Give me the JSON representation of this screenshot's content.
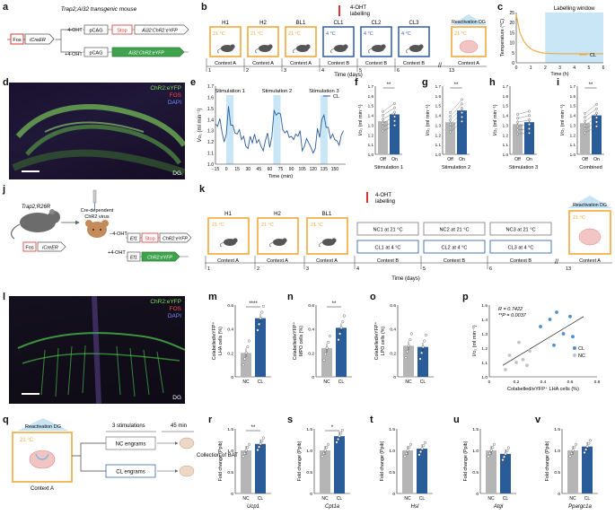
{
  "colors": {
    "orange": "#f2a83a",
    "blue": "#3a66b0",
    "light_blue": "#c8e6f5",
    "grey": "#b5b5b5",
    "dark_blue": "#2b5c9a"
  },
  "panel_labels": [
    "a",
    "b",
    "c",
    "d",
    "e",
    "f",
    "g",
    "h",
    "i",
    "j",
    "k",
    "l",
    "m",
    "n",
    "o",
    "p",
    "q",
    "r",
    "s",
    "t",
    "u",
    "v"
  ],
  "a": {
    "title": "Trap2;Ai32 transgenic mouse",
    "fos": "Fos",
    "icreer": "iCreER",
    "icreer_sup": "T2",
    "pcag": "pCAG",
    "stop": "Stop",
    "construct_top": "Ai32:ChR2:eYFP",
    "construct_bottom": "Ai32:ChR2:eYFP",
    "minus_oht": "−4-OHT",
    "plus_oht": "+4-OHT"
  },
  "b": {
    "oht": "4-OHT",
    "oht2": "labelling",
    "boxes": [
      {
        "name": "H1",
        "temp": "21 °C",
        "ctx": "Context A",
        "day": "1"
      },
      {
        "name": "H2",
        "temp": "21 °C",
        "ctx": "Context A",
        "day": "2"
      },
      {
        "name": "BL1",
        "temp": "21 °C",
        "ctx": "Context A",
        "day": "3"
      },
      {
        "name": "CL1",
        "temp": "4 °C",
        "ctx": "Context B",
        "day": "4"
      },
      {
        "name": "CL2",
        "temp": "4 °C",
        "ctx": "Context B",
        "day": "5"
      },
      {
        "name": "CL3",
        "temp": "4 °C",
        "ctx": "Context B",
        "day": "6"
      }
    ],
    "reactivation": "Reactivation DG",
    "react_temp": "21 °C",
    "react_ctx": "Context A",
    "react_day": "13",
    "xlabel": "Time (days)"
  },
  "c": {
    "title": "Labelling window",
    "ylabel": "Temperature (°C)",
    "xlabel": "Time (h)",
    "legend": "CL",
    "yticks": [
      "0",
      "5",
      "10",
      "15",
      "20",
      "25"
    ],
    "xticks": [
      "0",
      "1",
      "2",
      "3",
      "4",
      "5",
      "6"
    ]
  },
  "d": {
    "chr2": "ChR2:eYFP",
    "fos": "FOS",
    "dapi": "DAPI",
    "dg": "DG"
  },
  "e": {
    "ylabel_v": "V",
    "ylabel_sub": "O₂",
    "ylabel_unit": " (ml min⁻¹)",
    "xlabel": "Time (min)",
    "legend": "CL",
    "stims": [
      "Stimulation 1",
      "Stimulation 2",
      "Stimulation 3"
    ],
    "yticks": [
      "1.0",
      "1.1",
      "1.2",
      "1.3",
      "1.4",
      "1.5",
      "1.6",
      "1.7"
    ],
    "xticks": [
      "−15",
      "0",
      "15",
      "30",
      "45",
      "60",
      "75",
      "90",
      "105",
      "120",
      "135",
      "150"
    ]
  },
  "fghi": {
    "ylabel_v": "V",
    "ylabel_sub": "O₂",
    "ylabel_unit": " (ml min⁻¹)",
    "yticks": [
      "1.0",
      "1.1",
      "1.2",
      "1.3",
      "1.4",
      "1.5",
      "1.6",
      "1.7"
    ],
    "off": "Off",
    "on": "On",
    "panels": [
      {
        "cap": "Stimulation 1",
        "sig": "**"
      },
      {
        "cap": "Stimulation 2",
        "sig": "**"
      },
      {
        "cap": "Stimulation 3",
        "sig": ""
      },
      {
        "cap": "Combined",
        "sig": "**"
      }
    ]
  },
  "j": {
    "mouse": "Trap2;R26R",
    "fos": "Fos",
    "icreer": "iCreER",
    "icreer_sup": "T2",
    "virus1": "Cre-dependent",
    "virus2": "ChR2 virus",
    "ef1": "Ef1",
    "stop": "Stop",
    "chr2": "ChR2:eYFP",
    "chr2b": "ChR2:eYFP",
    "minus_oht": "−4-OHT",
    "plus_oht": "+4-OHT"
  },
  "k": {
    "oht": "4-OHT",
    "oht2": "labelling",
    "H": [
      {
        "name": "H1",
        "temp": "21 °C",
        "ctx": "Context A",
        "day": "1"
      },
      {
        "name": "H2",
        "temp": "21 °C",
        "ctx": "Context A",
        "day": "2"
      },
      {
        "name": "BL1",
        "temp": "21 °C",
        "ctx": "Context A",
        "day": "3"
      }
    ],
    "nc": [
      "NC1 at 21 °C",
      "NC2 at 21 °C",
      "NC3 at 21 °C"
    ],
    "cl": [
      "CL1 at 4 °C",
      "CL2 at 4 °C",
      "CL3 at 4 °C"
    ],
    "ctxB": "Context B",
    "days": [
      "4",
      "5",
      "6"
    ],
    "reactivation": "Reactivation DG",
    "react_temp": "21 °C",
    "react_ctx": "Context A",
    "react_day": "13",
    "xlabel": "Time (days)"
  },
  "l": {
    "chr2": "ChR2:eYFP",
    "fos": "FOS",
    "dapi": "DAPI",
    "dg": "DG"
  },
  "mno": {
    "panels": [
      {
        "ylabel1": "Colabelled/eYFP⁺",
        "ylabel2": "LHA cells (%)",
        "sig": "****",
        "yticks": [
          "0",
          "0.2",
          "0.4",
          "0.6"
        ]
      },
      {
        "ylabel1": "Colabelled/eYFP⁺",
        "ylabel2": "MPO cells (%)",
        "sig": "**",
        "yticks": [
          "0",
          "0.2",
          "0.4",
          "0.6"
        ]
      },
      {
        "ylabel1": "Colabelled/eYFP⁺",
        "ylabel2": "LPO cells (%)",
        "sig": "",
        "yticks": [
          "0",
          "0.2",
          "0.4",
          "0.6"
        ]
      }
    ],
    "nc": "NC",
    "cl": "CL"
  },
  "p": {
    "r": "R = 0.7422",
    "pval": "**P = 0.0037",
    "xlabel": "Colabelled/eYFP⁺ LHA cells (%)",
    "ylabel_v": "V",
    "ylabel_sub": "O₂",
    "ylabel_unit": " (ml min⁻¹)",
    "legend": [
      "CL",
      "NC"
    ],
    "xticks": [
      "0",
      "0.2",
      "0.4",
      "0.6",
      "0.8"
    ],
    "yticks": [
      "1.0",
      "1.1",
      "1.2",
      "1.3",
      "1.4",
      "1.5"
    ]
  },
  "q": {
    "reactivation": "Reactivation DG",
    "temp": "21 °C",
    "ctx": "Context A",
    "stim": "3 stimulations",
    "time": "45 min",
    "nc": "NC engrams",
    "cl": "CL engrams",
    "collection1": "Collection of BAT"
  },
  "rv": {
    "ylabel": "Fold change (Ppib)",
    "nc": "NC",
    "cl": "CL",
    "yticks": [
      "0",
      "0.5",
      "1.0",
      "1.5"
    ],
    "panels": [
      {
        "gene": "Ucp1",
        "sig": "**"
      },
      {
        "gene": "Cpt1a",
        "sig": "*"
      },
      {
        "gene": "Hsl",
        "sig": ""
      },
      {
        "gene": "Atgl",
        "sig": ""
      },
      {
        "gene": "Ppargc1a",
        "sig": ""
      }
    ]
  },
  "chart_data": [
    {
      "type": "line",
      "panel": "c",
      "title": "Labelling window",
      "xlabel": "Time (h)",
      "ylabel": "Temperature (°C)",
      "xlim": [
        0,
        6
      ],
      "ylim": [
        0,
        25
      ],
      "shaded_window": [
        2,
        6
      ],
      "series": [
        {
          "name": "CL",
          "x": [
            0,
            0.25,
            0.5,
            0.75,
            1,
            1.25,
            1.5,
            1.75,
            2,
            2.5,
            3,
            4,
            5,
            6
          ],
          "y": [
            24,
            15,
            11,
            8.5,
            7,
            6,
            5.5,
            5,
            4.8,
            4.6,
            4.5,
            4.5,
            4.5,
            4.5
          ]
        }
      ]
    },
    {
      "type": "line",
      "panel": "e",
      "xlabel": "Time (min)",
      "xlim": [
        -15,
        165
      ],
      "ylim": [
        1.0,
        1.7
      ],
      "stim_windows": [
        [
          0,
          10
        ],
        [
          65,
          75
        ],
        [
          130,
          140
        ]
      ],
      "series": [
        {
          "name": "CL",
          "x": [
            -15,
            -12,
            -9,
            -6,
            -3,
            0,
            3,
            6,
            9,
            12,
            15,
            18,
            21,
            24,
            27,
            30,
            33,
            36,
            39,
            42,
            45,
            48,
            51,
            54,
            57,
            60,
            63,
            66,
            69,
            72,
            75,
            78,
            81,
            84,
            87,
            90,
            93,
            96,
            99,
            102,
            105,
            108,
            111,
            114,
            117,
            120,
            123,
            126,
            129,
            132,
            135,
            138,
            141,
            144,
            147,
            150,
            153,
            156,
            159,
            162
          ],
          "y": [
            1.36,
            1.34,
            1.41,
            1.29,
            1.2,
            1.27,
            1.52,
            1.35,
            1.35,
            1.28,
            1.27,
            1.31,
            1.22,
            1.25,
            1.16,
            1.14,
            1.25,
            1.19,
            1.27,
            1.19,
            1.22,
            1.16,
            1.12,
            1.21,
            1.28,
            1.15,
            1.25,
            1.48,
            1.44,
            1.46,
            1.45,
            1.31,
            1.28,
            1.3,
            1.24,
            1.25,
            1.22,
            1.27,
            1.25,
            1.3,
            1.12,
            1.16,
            1.23,
            1.19,
            1.15,
            1.1,
            1.14,
            1.32,
            1.24,
            1.4,
            1.44,
            1.33,
            1.33,
            1.23,
            1.27,
            1.22,
            1.21,
            1.17,
            1.26,
            1.3
          ]
        }
      ]
    },
    {
      "type": "bar",
      "panel": "f",
      "categories": [
        "Off",
        "On"
      ],
      "values": [
        1.34,
        1.41
      ],
      "ylim": [
        1.0,
        1.7
      ]
    },
    {
      "type": "bar",
      "panel": "g",
      "categories": [
        "Off",
        "On"
      ],
      "values": [
        1.33,
        1.45
      ],
      "ylim": [
        1.0,
        1.7
      ]
    },
    {
      "type": "bar",
      "panel": "h",
      "categories": [
        "Off",
        "On"
      ],
      "values": [
        1.31,
        1.33
      ],
      "ylim": [
        1.0,
        1.7
      ]
    },
    {
      "type": "bar",
      "panel": "i",
      "categories": [
        "Off",
        "On"
      ],
      "values": [
        1.32,
        1.4
      ],
      "ylim": [
        1.0,
        1.7
      ]
    },
    {
      "type": "bar",
      "panel": "m",
      "categories": [
        "NC",
        "CL"
      ],
      "values": [
        0.2,
        0.49
      ],
      "ylim": [
        0,
        0.6
      ]
    },
    {
      "type": "bar",
      "panel": "n",
      "categories": [
        "NC",
        "CL"
      ],
      "values": [
        0.24,
        0.41
      ],
      "ylim": [
        0,
        0.6
      ]
    },
    {
      "type": "bar",
      "panel": "o",
      "categories": [
        "NC",
        "CL"
      ],
      "values": [
        0.26,
        0.25
      ],
      "ylim": [
        0,
        0.6
      ]
    },
    {
      "type": "scatter",
      "panel": "p",
      "xlim": [
        0,
        0.8
      ],
      "ylim": [
        1.0,
        1.5
      ],
      "series": [
        {
          "name": "CL",
          "x": [
            0.38,
            0.45,
            0.5,
            0.55,
            0.6,
            0.62,
            0.48
          ],
          "y": [
            1.35,
            1.4,
            1.45,
            1.3,
            1.42,
            1.28,
            1.22
          ]
        },
        {
          "name": "NC",
          "x": [
            0.12,
            0.15,
            0.2,
            0.25,
            0.28,
            0.3,
            0.22
          ],
          "y": [
            1.05,
            1.15,
            1.1,
            1.12,
            1.08,
            1.18,
            1.24
          ]
        }
      ],
      "fit": [
        [
          0.1,
          1.08
        ],
        [
          0.7,
          1.42
        ]
      ]
    },
    {
      "type": "bar",
      "panel": "r",
      "categories": [
        "NC",
        "CL"
      ],
      "values": [
        1.0,
        1.15
      ],
      "ylim": [
        0,
        1.5
      ]
    },
    {
      "type": "bar",
      "panel": "s",
      "categories": [
        "NC",
        "CL"
      ],
      "values": [
        1.0,
        1.33
      ],
      "ylim": [
        0,
        1.5
      ]
    },
    {
      "type": "bar",
      "panel": "t",
      "categories": [
        "NC",
        "CL"
      ],
      "values": [
        1.0,
        1.04
      ],
      "ylim": [
        0,
        1.5
      ]
    },
    {
      "type": "bar",
      "panel": "u",
      "categories": [
        "NC",
        "CL"
      ],
      "values": [
        1.0,
        0.92
      ],
      "ylim": [
        0,
        1.5
      ]
    },
    {
      "type": "bar",
      "panel": "v",
      "categories": [
        "NC",
        "CL"
      ],
      "values": [
        1.0,
        1.09
      ],
      "ylim": [
        0,
        1.5
      ]
    }
  ]
}
